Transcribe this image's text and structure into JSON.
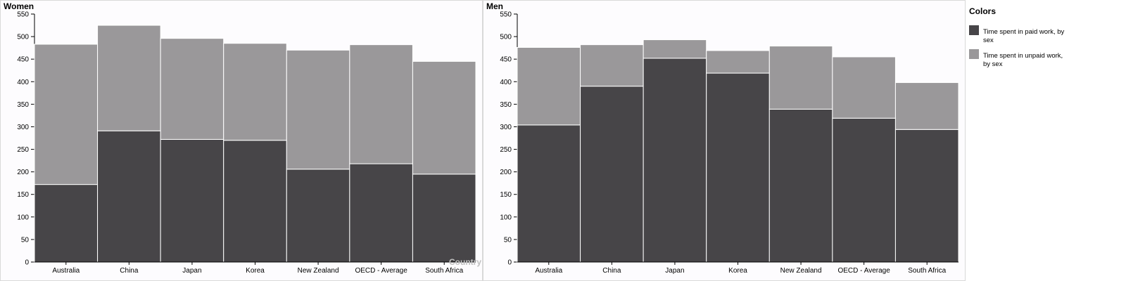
{
  "chart_data": [
    {
      "type": "bar",
      "stacked": true,
      "title": "Women",
      "xlabel": "Country",
      "ylabel": "",
      "ylim": [
        0,
        550
      ],
      "yticks": [
        0,
        50,
        100,
        150,
        200,
        250,
        300,
        350,
        400,
        450,
        500,
        550
      ],
      "categories": [
        "Australia",
        "China",
        "Japan",
        "Korea",
        "New Zealand",
        "OECD - Average",
        "South Africa"
      ],
      "series": [
        {
          "name": "Time spent in paid work, by sex",
          "values": [
            172,
            291,
            272,
            270,
            206,
            218,
            195
          ]
        },
        {
          "name": "Time spent in unpaid work, by sex",
          "values": [
            311,
            234,
            224,
            215,
            264,
            264,
            250
          ]
        }
      ]
    },
    {
      "type": "bar",
      "stacked": true,
      "title": "Men",
      "xlabel": "",
      "ylabel": "",
      "ylim": [
        0,
        550
      ],
      "yticks": [
        0,
        50,
        100,
        150,
        200,
        250,
        300,
        350,
        400,
        450,
        500,
        550
      ],
      "categories": [
        "Australia",
        "China",
        "Japan",
        "Korea",
        "New Zealand",
        "OECD - Average",
        "South Africa"
      ],
      "series": [
        {
          "name": "Time spent in paid work, by sex",
          "values": [
            304,
            390,
            452,
            419,
            339,
            319,
            294
          ]
        },
        {
          "name": "Time spent in unpaid work, by sex",
          "values": [
            172,
            92,
            41,
            50,
            140,
            136,
            104
          ]
        }
      ]
    }
  ],
  "legend": {
    "title": "Colors",
    "placement": "right",
    "items": [
      {
        "label_line1": "Time spent in paid work, by",
        "label_line2": "sex",
        "color": "#474548"
      },
      {
        "label_line1": "Time spent in unpaid work,",
        "label_line2": "by sex",
        "color": "#9a989a"
      }
    ]
  },
  "colors": {
    "paid": "#474548",
    "unpaid": "#9a989a",
    "plot_background": "#fdfcfe",
    "panel_border": "#d9d9d9"
  }
}
